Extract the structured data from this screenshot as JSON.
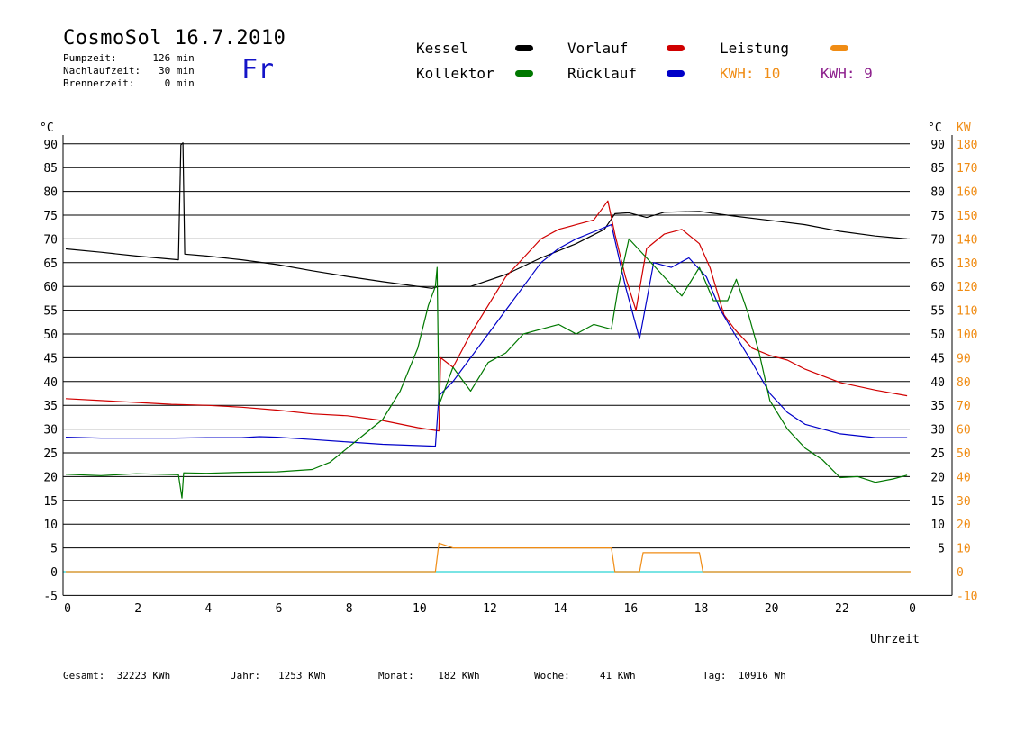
{
  "header": {
    "title": "CosmoSol 16.7.2010",
    "pumpzeit": "Pumpzeit:      126 min",
    "nachlaufzeit": "Nachlaufzeit:   30 min",
    "brennerzeit": "Brennerzeit:     0 min",
    "weekday": "Fr"
  },
  "legend": {
    "kessel": "Kessel",
    "kollektor": "Kollektor",
    "vorlauf": "Vorlauf",
    "ruecklauf": "Rücklauf",
    "leistung": "Leistung",
    "kwh1": "KWH: 10",
    "kwh2": "KWH: 9"
  },
  "footer": {
    "gesamt": "Gesamt:  32223 KWh",
    "jahr": "Jahr:   1253 KWh",
    "monat": "Monat:    182 KWh",
    "woche": "Woche:     41 KWh",
    "tag": "Tag:  10916 Wh"
  },
  "colors": {
    "kessel": "#000000",
    "kollektor": "#007800",
    "vorlauf": "#d00000",
    "ruecklauf": "#0000c8",
    "leistung": "#f08c14",
    "kwh2": "#8c1e8c",
    "zero_line": "#2bd4d4"
  },
  "chart_data": {
    "type": "line",
    "xlabel": "Uhrzeit",
    "ylabel_left": "°C",
    "ylabel_right_1": "°C",
    "ylabel_right_2": "KW",
    "x_ticks": [
      "0",
      "2",
      "4",
      "6",
      "8",
      "10",
      "12",
      "14",
      "16",
      "18",
      "20",
      "22",
      "0"
    ],
    "y_ticks_left": [
      "-5",
      "0",
      "5",
      "10",
      "15",
      "20",
      "25",
      "30",
      "35",
      "40",
      "45",
      "50",
      "55",
      "60",
      "65",
      "70",
      "75",
      "80",
      "85",
      "90"
    ],
    "y_ticks_right": [
      "5",
      "10",
      "15",
      "20",
      "25",
      "30",
      "35",
      "40",
      "45",
      "50",
      "55",
      "60",
      "65",
      "70",
      "75",
      "80",
      "85",
      "90"
    ],
    "y_ticks_kw": [
      "-10",
      "0",
      "10",
      "20",
      "30",
      "40",
      "50",
      "60",
      "70",
      "80",
      "90",
      "100",
      "110",
      "120",
      "130",
      "140",
      "150",
      "160",
      "170",
      "180"
    ],
    "xlim": [
      0,
      24
    ],
    "ylim": [
      -5,
      90
    ],
    "grid": true,
    "series": [
      {
        "name": "Kessel",
        "color": "#000000",
        "points": [
          [
            0,
            67.9
          ],
          [
            1,
            67.2
          ],
          [
            2,
            66.4
          ],
          [
            3.2,
            65.6
          ],
          [
            3.27,
            89.8
          ],
          [
            3.33,
            90.2
          ],
          [
            3.38,
            66.8
          ],
          [
            4,
            66.4
          ],
          [
            5,
            65.6
          ],
          [
            6,
            64.6
          ],
          [
            7,
            63.3
          ],
          [
            8,
            62.1
          ],
          [
            9,
            61
          ],
          [
            10.4,
            59.6
          ],
          [
            10.6,
            60
          ],
          [
            11.5,
            60
          ],
          [
            12.5,
            62.5
          ],
          [
            13.5,
            66
          ],
          [
            14.5,
            69
          ],
          [
            15.3,
            72
          ],
          [
            15.6,
            75.3
          ],
          [
            16,
            75.5
          ],
          [
            16.5,
            74.5
          ],
          [
            17,
            75.6
          ],
          [
            18,
            75.8
          ],
          [
            19,
            74.8
          ],
          [
            20,
            73.9
          ],
          [
            21,
            73
          ],
          [
            22,
            71.6
          ],
          [
            23,
            70.6
          ],
          [
            23.9,
            70
          ]
        ]
      },
      {
        "name": "Vorlauf",
        "color": "#d00000",
        "points": [
          [
            0,
            36.4
          ],
          [
            1,
            36
          ],
          [
            2,
            35.6
          ],
          [
            3,
            35.2
          ],
          [
            4,
            35
          ],
          [
            5,
            34.6
          ],
          [
            6,
            34
          ],
          [
            7,
            33.2
          ],
          [
            8,
            32.8
          ],
          [
            9,
            31.8
          ],
          [
            10,
            30.3
          ],
          [
            10.6,
            29.6
          ],
          [
            10.65,
            45
          ],
          [
            11,
            43
          ],
          [
            11.5,
            50
          ],
          [
            12,
            56
          ],
          [
            12.5,
            62
          ],
          [
            13,
            66
          ],
          [
            13.5,
            70
          ],
          [
            14,
            72
          ],
          [
            14.5,
            73
          ],
          [
            15,
            74
          ],
          [
            15.4,
            78
          ],
          [
            15.6,
            71
          ],
          [
            15.9,
            62
          ],
          [
            16.2,
            55
          ],
          [
            16.5,
            68
          ],
          [
            17,
            71
          ],
          [
            17.5,
            72
          ],
          [
            18,
            69
          ],
          [
            18.3,
            64
          ],
          [
            18.7,
            54
          ],
          [
            19,
            51
          ],
          [
            19.5,
            47
          ],
          [
            20,
            45.5
          ],
          [
            20.5,
            44.5
          ],
          [
            21,
            42.6
          ],
          [
            22,
            39.8
          ],
          [
            23,
            38.2
          ],
          [
            23.9,
            37
          ]
        ]
      },
      {
        "name": "Rücklauf",
        "color": "#0000c8",
        "points": [
          [
            0,
            28.3
          ],
          [
            1,
            28.1
          ],
          [
            2,
            28.1
          ],
          [
            3.1,
            28.1
          ],
          [
            4,
            28.2
          ],
          [
            5,
            28.2
          ],
          [
            5.5,
            28.4
          ],
          [
            6,
            28.3
          ],
          [
            7,
            27.8
          ],
          [
            8,
            27.3
          ],
          [
            9,
            26.8
          ],
          [
            10.5,
            26.4
          ],
          [
            10.6,
            37
          ],
          [
            11,
            40
          ],
          [
            11.5,
            45
          ],
          [
            12,
            50
          ],
          [
            12.5,
            55
          ],
          [
            13,
            60
          ],
          [
            13.5,
            65
          ],
          [
            14,
            68
          ],
          [
            14.5,
            70
          ],
          [
            15,
            71.5
          ],
          [
            15.5,
            73
          ],
          [
            15.9,
            60
          ],
          [
            16.3,
            49
          ],
          [
            16.7,
            65
          ],
          [
            17.2,
            64
          ],
          [
            17.7,
            66
          ],
          [
            18.2,
            62
          ],
          [
            18.6,
            55
          ],
          [
            19,
            50
          ],
          [
            19.5,
            44
          ],
          [
            20,
            37.5
          ],
          [
            20.5,
            33.5
          ],
          [
            21,
            31
          ],
          [
            22,
            29
          ],
          [
            23,
            28.2
          ],
          [
            23.9,
            28.2
          ]
        ]
      },
      {
        "name": "Kollektor",
        "color": "#007800",
        "points": [
          [
            0,
            20.5
          ],
          [
            1,
            20.2
          ],
          [
            2,
            20.6
          ],
          [
            3.2,
            20.4
          ],
          [
            3.3,
            15.5
          ],
          [
            3.35,
            20.8
          ],
          [
            4,
            20.7
          ],
          [
            5,
            20.9
          ],
          [
            6,
            21
          ],
          [
            7,
            21.5
          ],
          [
            7.5,
            23
          ],
          [
            8,
            26
          ],
          [
            8.5,
            29
          ],
          [
            9,
            32
          ],
          [
            9.5,
            38
          ],
          [
            10,
            47
          ],
          [
            10.3,
            56
          ],
          [
            10.5,
            60
          ],
          [
            10.55,
            64
          ],
          [
            10.6,
            35
          ],
          [
            11,
            43
          ],
          [
            11.5,
            38
          ],
          [
            12,
            44
          ],
          [
            12.5,
            46
          ],
          [
            13,
            50
          ],
          [
            13.5,
            51
          ],
          [
            14,
            52
          ],
          [
            14.5,
            50
          ],
          [
            15,
            52
          ],
          [
            15.5,
            51
          ],
          [
            15.7,
            60
          ],
          [
            16,
            70
          ],
          [
            16.5,
            66
          ],
          [
            17,
            62
          ],
          [
            17.5,
            58
          ],
          [
            18,
            64
          ],
          [
            18.4,
            57
          ],
          [
            18.8,
            57
          ],
          [
            19.05,
            61.5
          ],
          [
            19.4,
            54
          ],
          [
            19.7,
            46
          ],
          [
            20,
            36
          ],
          [
            20.5,
            30
          ],
          [
            21,
            26
          ],
          [
            21.5,
            23.5
          ],
          [
            21.7,
            22
          ],
          [
            22,
            19.8
          ],
          [
            22.5,
            20
          ],
          [
            23,
            18.8
          ],
          [
            23.5,
            19.5
          ],
          [
            23.9,
            20.3
          ]
        ]
      },
      {
        "name": "Leistung",
        "color": "#f08c14",
        "points": [
          [
            0,
            0
          ],
          [
            10.5,
            0
          ],
          [
            10.6,
            6
          ],
          [
            11,
            5
          ],
          [
            12,
            5
          ],
          [
            13,
            5
          ],
          [
            14,
            5
          ],
          [
            15,
            5
          ],
          [
            15.5,
            5
          ],
          [
            15.6,
            0
          ],
          [
            16.3,
            0
          ],
          [
            16.4,
            4
          ],
          [
            18,
            4
          ],
          [
            18.1,
            0
          ],
          [
            24,
            0
          ]
        ]
      }
    ],
    "annotations": [
      "KWH: 10",
      "KWH: 9"
    ]
  }
}
